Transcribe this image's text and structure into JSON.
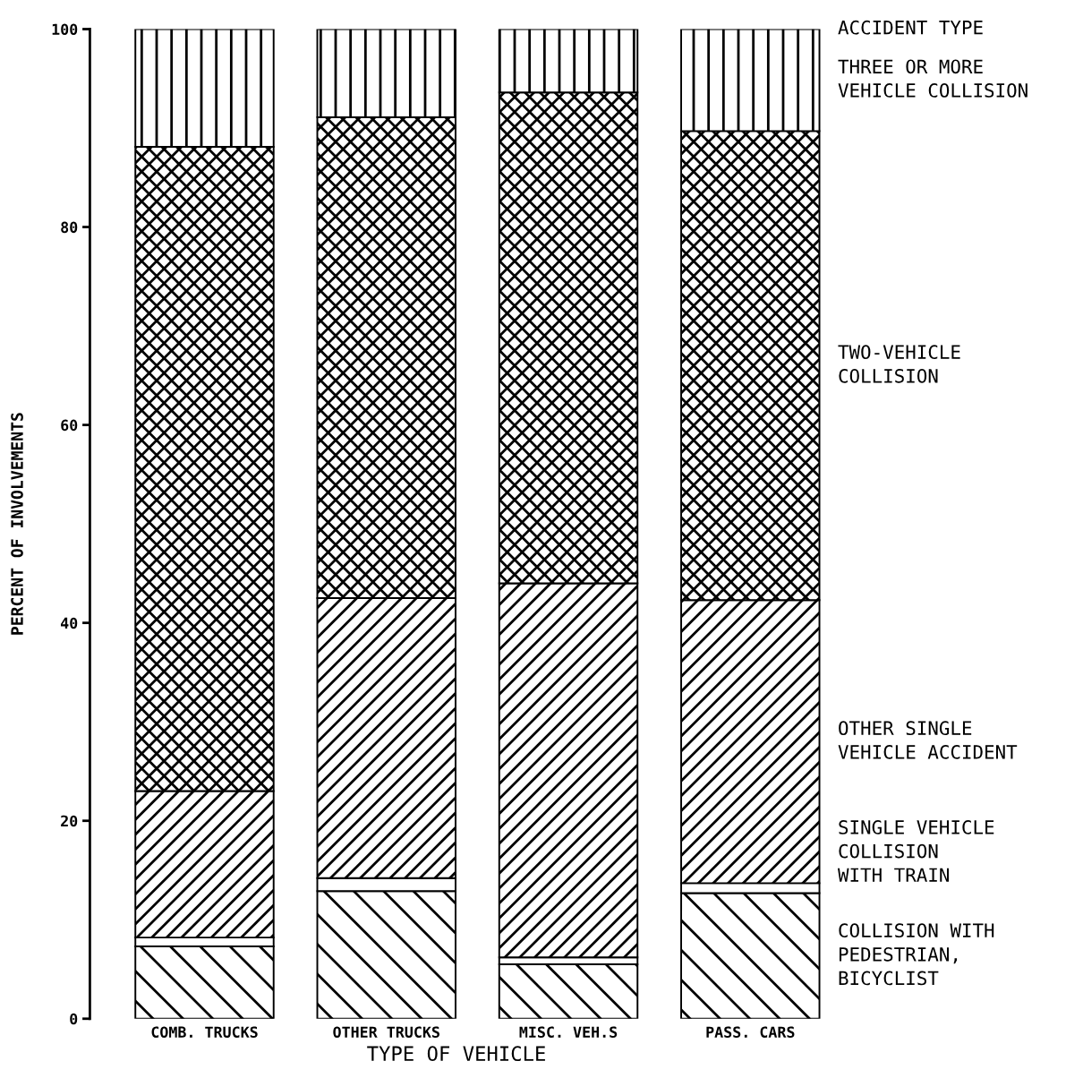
{
  "chart_data": {
    "type": "bar",
    "stacked": true,
    "xlabel": "TYPE OF VEHICLE",
    "ylabel": "PERCENT OF INVOLVEMENTS",
    "legend_title": "ACCIDENT TYPE",
    "categories": [
      "COMB. TRUCKS",
      "OTHER TRUCKS",
      "MISC. VEH.S",
      "PASS. CARS"
    ],
    "ylim": [
      0,
      100
    ],
    "yticks": [
      0,
      20,
      40,
      60,
      80,
      100
    ],
    "grid": false,
    "legend": "right",
    "series": [
      {
        "name": "COLLISION WITH\nPEDESTRIAN,\nBICYCLIST",
        "color": "#000000",
        "values": [
          7.3,
          12.9,
          5.5,
          12.7
        ]
      },
      {
        "name": "SINGLE VEHICLE\nCOLLISION\nWITH TRAIN",
        "color": "#ffffff",
        "values": [
          0.9,
          1.3,
          0.7,
          1.0
        ]
      },
      {
        "name": "OTHER SINGLE\nVEHICLE ACCIDENT",
        "color": "#000000",
        "values": [
          14.8,
          28.3,
          37.8,
          28.6
        ]
      },
      {
        "name": "TWO-VEHICLE\nCOLLISION",
        "color": "#000000",
        "values": [
          65.1,
          48.6,
          49.6,
          47.4
        ]
      },
      {
        "name": "THREE OR MORE\nVEHICLE COLLISION",
        "color": "#000000",
        "values": [
          11.9,
          8.9,
          6.4,
          10.3
        ]
      }
    ]
  }
}
